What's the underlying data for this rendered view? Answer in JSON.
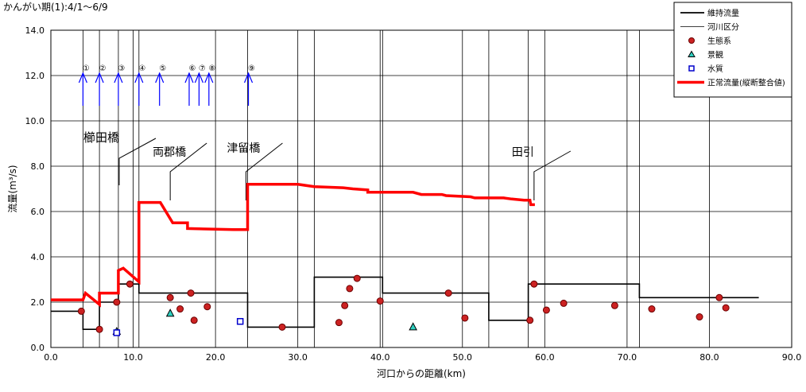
{
  "title": "かんがい期(1):4/1～6/9",
  "chart_data": {
    "type": "line",
    "xlabel": "河口からの距離(km)",
    "ylabel": "流量(m³/s)",
    "xlim": [
      0,
      90
    ],
    "ylim": [
      0,
      14
    ],
    "x_ticks": [
      "0.0",
      "10.0",
      "20.0",
      "30.0",
      "40.0",
      "50.0",
      "60.0",
      "70.0",
      "80.0",
      "90.0"
    ],
    "y_ticks": [
      "0.0",
      "2.0",
      "4.0",
      "6.0",
      "8.0",
      "10.0",
      "12.0",
      "14.0"
    ],
    "grid": true,
    "legend_position": "top-right",
    "legend": [
      {
        "label": "維持流量",
        "kind": "line-black-thick"
      },
      {
        "label": "河川区分",
        "kind": "line-black-thin"
      },
      {
        "label": "生態系",
        "kind": "marker-red-circle"
      },
      {
        "label": "景観",
        "kind": "marker-cyan-triangle"
      },
      {
        "label": "水質",
        "kind": "marker-blue-square"
      },
      {
        "label": "正常流量(縦断整合値)",
        "kind": "line-red-thick"
      }
    ],
    "river_divisions_km": [
      3.9,
      5.9,
      8.2,
      10.7,
      23.9,
      32.0,
      40.3,
      53.2,
      58.0,
      71.5
    ],
    "series": [
      {
        "name": "維持流量",
        "color": "#000000",
        "points": [
          [
            0,
            1.6
          ],
          [
            3.9,
            1.6
          ],
          [
            3.9,
            0.8
          ],
          [
            5.9,
            0.8
          ],
          [
            5.9,
            2.0
          ],
          [
            8.2,
            2.0
          ],
          [
            8.2,
            2.8
          ],
          [
            10.7,
            2.8
          ],
          [
            10.7,
            2.4
          ],
          [
            23.9,
            2.4
          ],
          [
            23.9,
            0.9
          ],
          [
            32.0,
            0.9
          ],
          [
            32.0,
            3.1
          ],
          [
            40.3,
            3.1
          ],
          [
            40.3,
            2.4
          ],
          [
            53.2,
            2.4
          ],
          [
            53.2,
            1.2
          ],
          [
            58.0,
            1.2
          ],
          [
            58.0,
            2.8
          ],
          [
            71.5,
            2.8
          ],
          [
            71.5,
            2.2
          ],
          [
            86.0,
            2.2
          ]
        ]
      },
      {
        "name": "正常流量(縦断整合値)",
        "color": "#ff0000",
        "points": [
          [
            0,
            2.1
          ],
          [
            3.9,
            2.1
          ],
          [
            4.2,
            2.4
          ],
          [
            5.9,
            1.9
          ],
          [
            5.9,
            2.4
          ],
          [
            8.2,
            2.4
          ],
          [
            8.2,
            3.4
          ],
          [
            8.8,
            3.5
          ],
          [
            10.7,
            2.9
          ],
          [
            10.7,
            6.4
          ],
          [
            13.3,
            6.4
          ],
          [
            14.8,
            5.5
          ],
          [
            16.6,
            5.5
          ],
          [
            16.6,
            5.25
          ],
          [
            22.2,
            5.2
          ],
          [
            23.9,
            5.2
          ],
          [
            23.9,
            7.2
          ],
          [
            30.0,
            7.2
          ],
          [
            32.0,
            7.1
          ],
          [
            35.5,
            7.05
          ],
          [
            36.7,
            7.0
          ],
          [
            38.5,
            6.95
          ],
          [
            38.5,
            6.85
          ],
          [
            44.0,
            6.85
          ],
          [
            45.0,
            6.75
          ],
          [
            47.5,
            6.75
          ],
          [
            48.0,
            6.7
          ],
          [
            51.0,
            6.65
          ],
          [
            51.5,
            6.6
          ],
          [
            55.0,
            6.6
          ],
          [
            56.0,
            6.55
          ],
          [
            57.5,
            6.5
          ],
          [
            58.2,
            6.5
          ],
          [
            58.3,
            6.3
          ],
          [
            58.8,
            6.3
          ]
        ]
      }
    ],
    "markers": {
      "生態系": [
        [
          3.7,
          1.6
        ],
        [
          5.9,
          0.8
        ],
        [
          8.0,
          2.0
        ],
        [
          9.6,
          2.8
        ],
        [
          14.5,
          2.2
        ],
        [
          15.7,
          1.7
        ],
        [
          17.0,
          2.4
        ],
        [
          17.4,
          1.2
        ],
        [
          19.0,
          1.8
        ],
        [
          28.1,
          0.9
        ],
        [
          35.0,
          1.1
        ],
        [
          35.7,
          1.85
        ],
        [
          36.3,
          2.6
        ],
        [
          37.2,
          3.05
        ],
        [
          40.0,
          2.05
        ],
        [
          48.3,
          2.4
        ],
        [
          50.3,
          1.3
        ],
        [
          58.2,
          1.2
        ],
        [
          58.7,
          2.8
        ],
        [
          60.2,
          1.65
        ],
        [
          62.3,
          1.95
        ],
        [
          68.5,
          1.85
        ],
        [
          73.0,
          1.7
        ],
        [
          78.8,
          1.35
        ],
        [
          81.2,
          2.2
        ],
        [
          82.0,
          1.75
        ]
      ],
      "景観": [
        [
          8.0,
          0.7
        ],
        [
          14.5,
          1.5
        ],
        [
          44.0,
          0.9
        ]
      ],
      "水質": [
        [
          8.0,
          0.65
        ],
        [
          23.0,
          1.15
        ]
      ]
    },
    "reference_points": [
      {
        "label": "①",
        "km": 3.9
      },
      {
        "label": "②",
        "km": 5.9
      },
      {
        "label": "③",
        "km": 8.2
      },
      {
        "label": "④",
        "km": 10.7
      },
      {
        "label": "⑤",
        "km": 13.2
      },
      {
        "label": "⑥",
        "km": 16.8
      },
      {
        "label": "⑦",
        "km": 18.0
      },
      {
        "label": "⑧",
        "km": 19.2
      },
      {
        "label": "⑨",
        "km": 24.0
      }
    ],
    "annotations": [
      {
        "label": "櫛田橋",
        "km": 8.3
      },
      {
        "label": "両郡橋",
        "km": 14.5
      },
      {
        "label": "津留橋",
        "km": 23.7
      },
      {
        "label": "田引",
        "km": 58.7
      }
    ]
  }
}
